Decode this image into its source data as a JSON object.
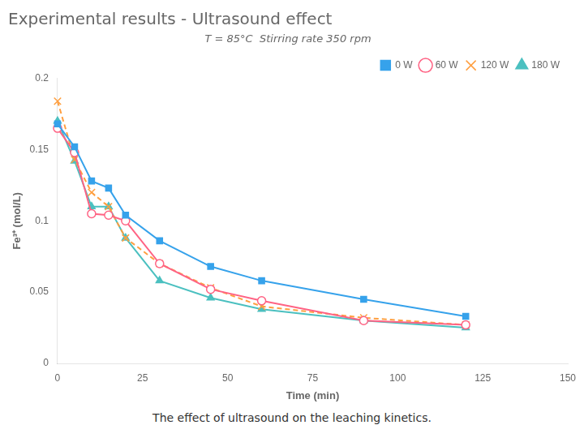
{
  "chart_data": {
    "type": "line",
    "title": "Experimental results - Ultrasound effect",
    "subtitle": "T = 85°C  Stirring rate 350 rpm",
    "caption": "The effect of ultrasound on the leaching kinetics.",
    "xlabel": "Time (min)",
    "ylabel": "Fe³⁺ (mol/L)",
    "x": [
      0,
      5,
      10,
      15,
      20,
      30,
      45,
      60,
      90,
      120
    ],
    "series": [
      {
        "name": "0 W",
        "values": [
          0.168,
          0.152,
          0.128,
          0.123,
          0.104,
          0.086,
          0.068,
          0.058,
          0.045,
          0.033
        ],
        "marker": "square",
        "line_style": "solid"
      },
      {
        "name": "60 W",
        "values": [
          0.165,
          0.148,
          0.105,
          0.104,
          0.1,
          0.07,
          0.052,
          0.044,
          0.03,
          0.027
        ],
        "marker": "open_circle",
        "line_style": "solid"
      },
      {
        "name": "120 W",
        "values": [
          0.184,
          0.143,
          0.12,
          0.11,
          0.088,
          0.07,
          0.053,
          0.04,
          0.032,
          0.027
        ],
        "marker": "x",
        "line_style": "dashed"
      },
      {
        "name": "180 W",
        "values": [
          0.17,
          0.142,
          0.11,
          0.11,
          0.088,
          0.058,
          0.046,
          0.038,
          0.03,
          0.025
        ],
        "marker": "triangle",
        "line_style": "solid"
      }
    ],
    "xlim": [
      0,
      150
    ],
    "ylim": [
      0,
      0.2
    ],
    "xticks": [
      0,
      25,
      50,
      75,
      100,
      125,
      150
    ],
    "yticks": [
      0,
      0.05,
      0.1,
      0.15,
      0.2
    ],
    "grid": false,
    "legend": "upper right"
  }
}
